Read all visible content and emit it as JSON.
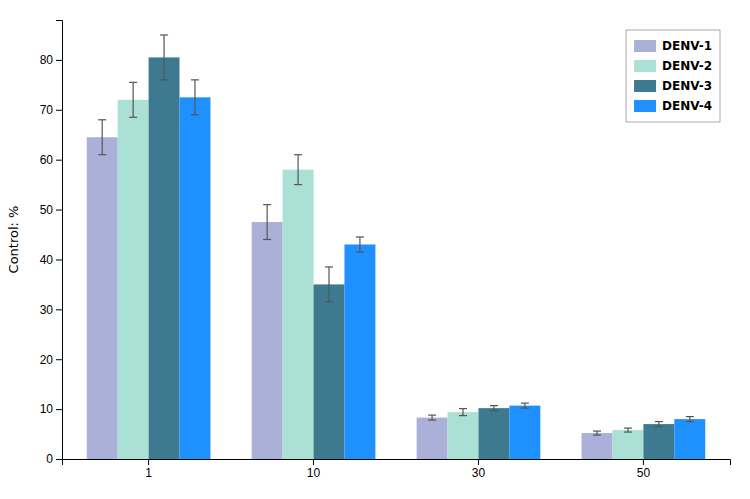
{
  "chart_data": {
    "type": "bar",
    "categories": [
      "1",
      "10",
      "30",
      "50"
    ],
    "series": [
      {
        "name": "DENV-1",
        "color": "#aab0d8",
        "values": [
          64.5,
          47.5,
          8.3,
          5.2
        ],
        "errors": [
          3.5,
          3.5,
          0.5,
          0.4
        ]
      },
      {
        "name": "DENV-2",
        "color": "#abe0d5",
        "values": [
          72.0,
          58.0,
          9.4,
          5.8
        ],
        "errors": [
          3.5,
          3.0,
          0.7,
          0.4
        ]
      },
      {
        "name": "DENV-3",
        "color": "#3d7a90",
        "values": [
          80.5,
          35.0,
          10.2,
          7.0
        ],
        "errors": [
          4.5,
          3.5,
          0.5,
          0.5
        ]
      },
      {
        "name": "DENV-4",
        "color": "#1e90ff",
        "values": [
          72.5,
          43.0,
          10.7,
          8.0
        ],
        "errors": [
          3.5,
          1.5,
          0.5,
          0.5
        ]
      }
    ],
    "ylabel": "Control: %",
    "ylim": [
      0,
      88
    ],
    "yticks": [
      0,
      10,
      20,
      30,
      40,
      50,
      60,
      70,
      80
    ],
    "grid": false,
    "legend": "upper right"
  }
}
